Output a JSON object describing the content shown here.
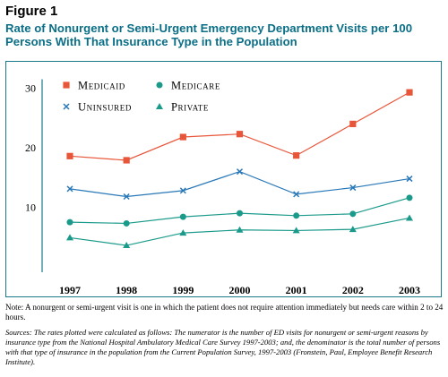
{
  "figure_label": "Figure 1",
  "title": "Rate of Nonurgent or Semi-Urgent Emergency Department Visits per 100 Persons With That Insurance Type in the Population",
  "note": "Note: A nonurgent or semi-urgent visit is one in which the patient does not require attention immediately but needs care within 2 to 24 hours.",
  "sources": "Sources: The rates plotted were calculated as follows: The numerator is the number of ED visits for nonurgent or semi-urgent reasons by insurance type from the National Hospital Ambulatory Medical Care Survey 1997-2003; and, the denominator is the total number of persons with that type of insurance in the population from the Current Population Survey, 1997-2003 (Fronstein, Paul, Employee Benefit Research Institute).",
  "chart_data": {
    "type": "line",
    "title": "",
    "xlabel": "",
    "ylabel": "",
    "categories": [
      "1997",
      "1998",
      "1999",
      "2000",
      "2001",
      "2002",
      "2003"
    ],
    "yticks": [
      10,
      20,
      30
    ],
    "ylim": [
      0,
      32
    ],
    "grid": false,
    "legend_position": "top-left",
    "series": [
      {
        "name": "Medicaid",
        "marker": "square",
        "color": "#e8563a",
        "values": [
          18.6,
          17.9,
          21.8,
          22.3,
          18.7,
          24.0,
          29.3
        ]
      },
      {
        "name": "Medicare",
        "marker": "circle",
        "color": "#1a9a8a",
        "values": [
          7.5,
          7.3,
          8.4,
          9.0,
          8.6,
          8.9,
          11.6
        ]
      },
      {
        "name": "Uninsured",
        "marker": "x",
        "color": "#2878b8",
        "values": [
          13.1,
          11.8,
          12.8,
          16.0,
          12.2,
          13.3,
          14.8
        ]
      },
      {
        "name": "Private",
        "marker": "triangle",
        "color": "#1a9a8a",
        "values": [
          4.9,
          3.6,
          5.7,
          6.2,
          6.1,
          6.3,
          8.2
        ]
      }
    ]
  }
}
